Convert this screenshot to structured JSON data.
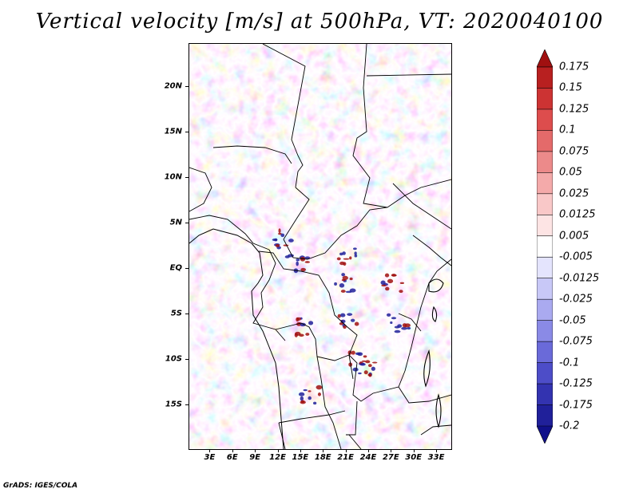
{
  "title": "Vertical velocity [m/s] at 500hPa, VT: 2020040100",
  "credit": "GrADS: IGES/COLA",
  "lat_axis": {
    "labels": [
      "20N",
      "15N",
      "10N",
      "5N",
      "EQ",
      "5S",
      "10S",
      "15S"
    ],
    "values": [
      20,
      15,
      10,
      5,
      0,
      -5,
      -10,
      -15
    ],
    "range": [
      -19.8,
      24.7
    ]
  },
  "lon_axis": {
    "labels": [
      "3E",
      "6E",
      "9E",
      "12E",
      "15E",
      "18E",
      "21E",
      "24E",
      "27E",
      "30E",
      "33E"
    ],
    "values": [
      3,
      6,
      9,
      12,
      15,
      18,
      21,
      24,
      27,
      30,
      33
    ],
    "range": [
      0.2,
      34.9
    ]
  },
  "colorbar": {
    "levels": [
      "0.175",
      "0.15",
      "0.125",
      "0.1",
      "0.075",
      "0.05",
      "0.025",
      "0.0125",
      "0.005",
      "-0.005",
      "-0.0125",
      "-0.025",
      "-0.05",
      "-0.075",
      "-0.1",
      "-0.125",
      "-0.175",
      "-0.2"
    ],
    "colors": [
      "#a01010",
      "#b82020",
      "#cc3333",
      "#dd4d4d",
      "#e46a6a",
      "#ec8a8a",
      "#f4aaaa",
      "#f9c8c8",
      "#fde4e4",
      "#ffffff",
      "#e4e4fd",
      "#c8c8f7",
      "#aaaaf0",
      "#8a8ae6",
      "#6a6ad9",
      "#4d4dc8",
      "#3333b0",
      "#20209a",
      "#10108a"
    ]
  }
}
